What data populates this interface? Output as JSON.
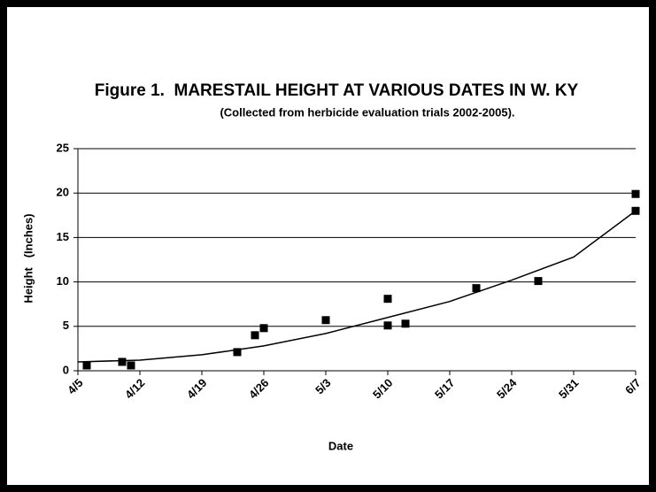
{
  "chart_data": {
    "type": "scatter",
    "title": "Figure 1.  MARESTAIL HEIGHT AT VARIOUS DATES IN W. KY",
    "subtitle": "(Collected from herbicide evaluation trials 2002-2005).",
    "x_label": "Date",
    "y_label": "Height   (Inches)",
    "color": "#000000",
    "x": [
      96,
      100,
      101,
      113,
      115,
      116,
      123,
      130,
      130,
      132,
      140,
      147,
      158,
      158
    ],
    "values": [
      0.6,
      1.0,
      0.6,
      2.1,
      4.0,
      4.8,
      5.7,
      8.1,
      5.1,
      5.3,
      9.3,
      10.1,
      19.9,
      18.0
    ],
    "trendline": {
      "x": [
        95,
        102,
        109,
        116,
        123,
        130,
        137,
        144,
        151,
        158
      ],
      "values": [
        1.0,
        1.2,
        1.8,
        2.8,
        4.2,
        6.0,
        7.8,
        10.2,
        12.8,
        18.0
      ]
    },
    "xlim": [
      95,
      158
    ],
    "xticks": [
      {
        "value": 95,
        "label": "4/5"
      },
      {
        "value": 102,
        "label": "4/12"
      },
      {
        "value": 109,
        "label": "4/19"
      },
      {
        "value": 116,
        "label": "4/26"
      },
      {
        "value": 123,
        "label": "5/3"
      },
      {
        "value": 130,
        "label": "5/10"
      },
      {
        "value": 137,
        "label": "5/17"
      },
      {
        "value": 144,
        "label": "5/24"
      },
      {
        "value": 151,
        "label": "5/31"
      },
      {
        "value": 158,
        "label": "6/7"
      }
    ],
    "ylim": [
      0,
      25
    ],
    "yticks": [
      0,
      5,
      10,
      15,
      20,
      25
    ],
    "grid": true
  }
}
